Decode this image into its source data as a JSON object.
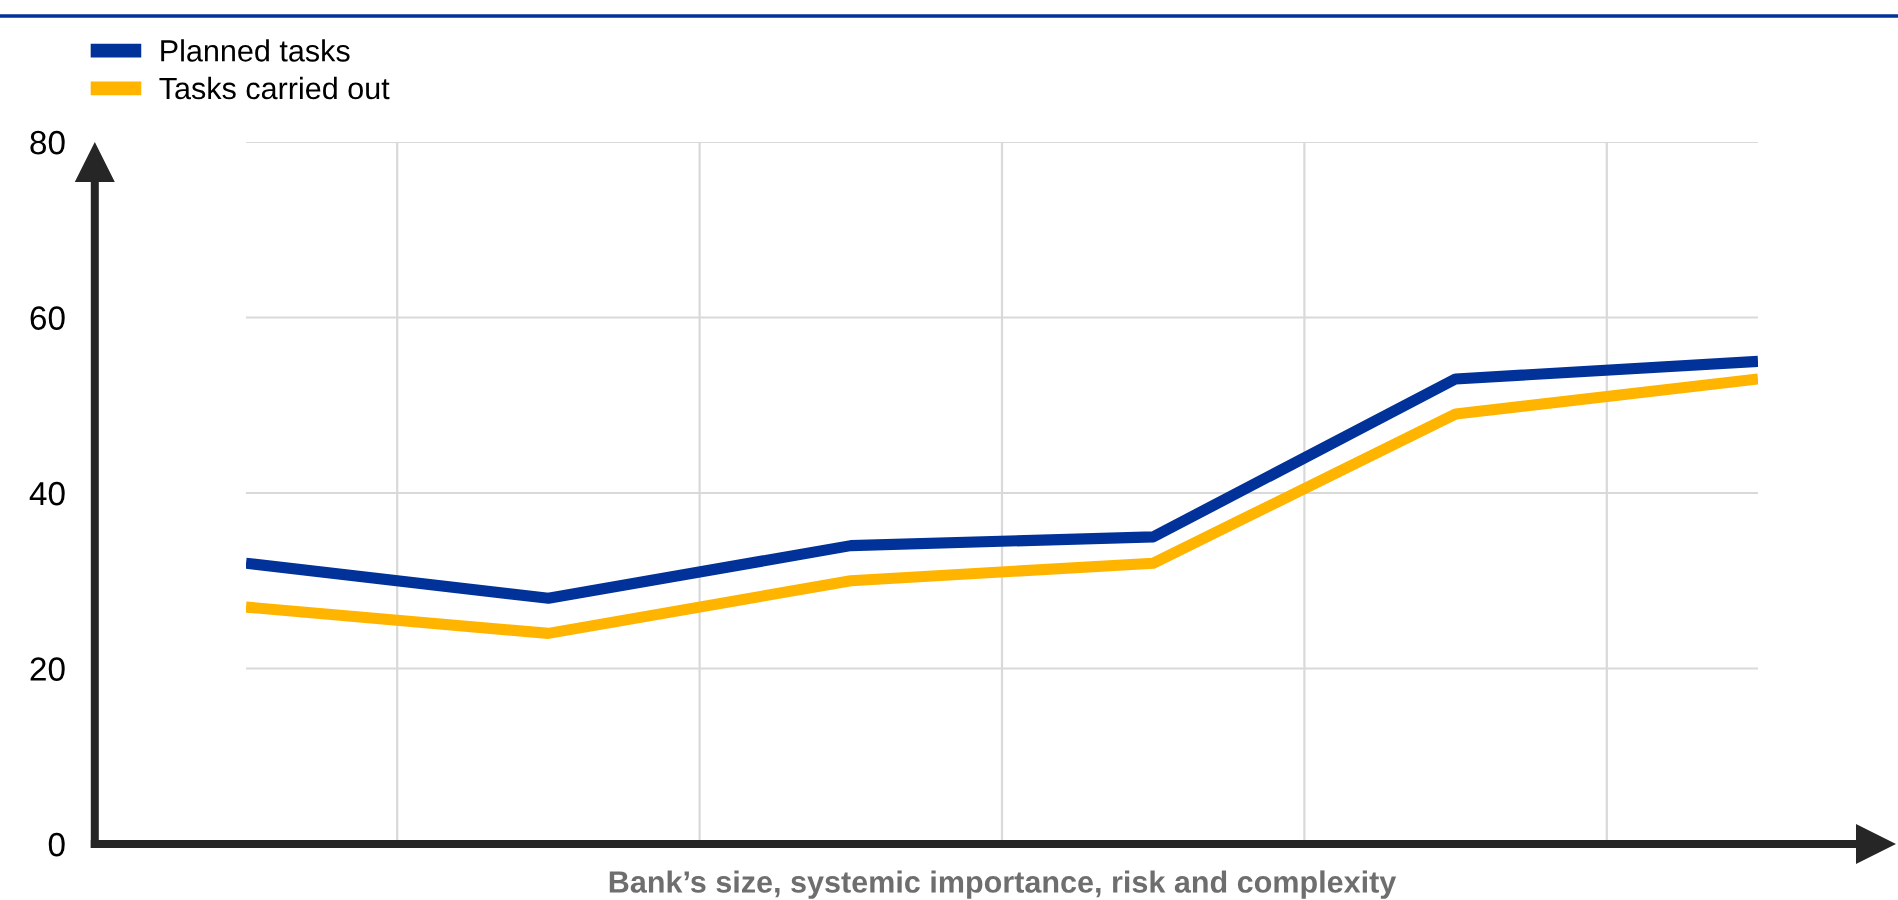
{
  "chart_data": {
    "type": "line",
    "xlabel": "Bank’s size, systemic importance, risk and complexity",
    "categories": [
      null,
      null,
      null,
      null,
      null,
      null
    ],
    "series": [
      {
        "name": "Planned tasks",
        "color": "#003299",
        "values": [
          32,
          28,
          34,
          35,
          53,
          55
        ]
      },
      {
        "name": "Tasks carried out",
        "color": "#ffb400",
        "values": [
          27,
          24,
          30,
          32,
          49,
          53
        ]
      }
    ],
    "ylim": [
      0,
      80
    ],
    "yticks": [
      0,
      20,
      40,
      60,
      80
    ],
    "grid": true,
    "legend": "top left",
    "marker": "none",
    "line_style": "solid"
  }
}
